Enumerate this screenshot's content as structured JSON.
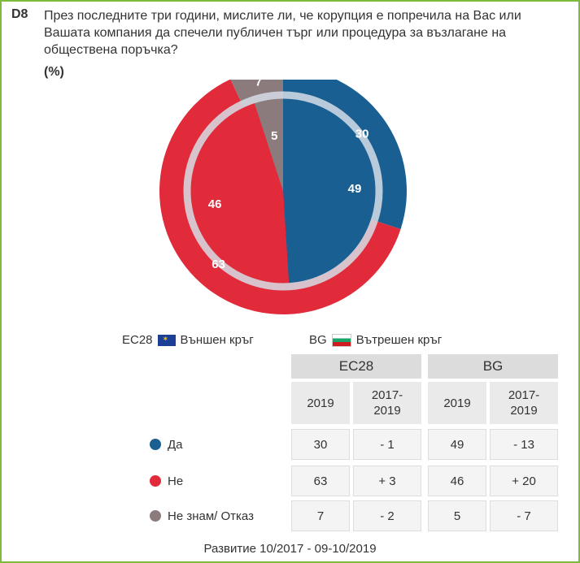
{
  "question": {
    "id": "D8",
    "text": "През последните три години, мислите ли, че корупция е попречила на Вас или Вашата компания да спечели публичен търг или процедура за възлагане на обществена поръчка?",
    "unit": "(%)"
  },
  "chart_data": {
    "type": "pie",
    "outer": {
      "series": "EC28",
      "values": [
        30,
        63,
        7
      ],
      "labels": [
        "30",
        "63",
        "7"
      ]
    },
    "inner": {
      "series": "BG",
      "values": [
        49,
        46,
        5
      ],
      "labels": [
        "49",
        "46",
        "5"
      ]
    },
    "categories": [
      "Да",
      "Не",
      "Не знам/ Отказ"
    ],
    "colors": [
      "#1a5f92",
      "#e12b3b",
      "#8c7b7c"
    ],
    "outer_colors": [
      "#1a5f92",
      "#e12b3b",
      "#8c7b7c"
    ],
    "inner_colors": [
      "#1a5f92",
      "#e12b3b",
      "#8c7b7c"
    ]
  },
  "legend": {
    "eu_code": "EC28",
    "eu_text": "Външен кръг",
    "bg_code": "BG",
    "bg_text": "Вътрешен кръг"
  },
  "table": {
    "group_headers": [
      "EC28",
      "BG"
    ],
    "sub_headers": [
      "2019",
      "2017-\n2019",
      "2019",
      "2017-\n2019"
    ],
    "rows": [
      {
        "label": "Да",
        "color": "#1a5f92",
        "values": [
          "30",
          "- 1",
          "49",
          "- 13"
        ]
      },
      {
        "label": "Не",
        "color": "#e12b3b",
        "values": [
          "63",
          "+ 3",
          "46",
          "+ 20"
        ]
      },
      {
        "label": "Не знам/ Отказ",
        "color": "#8c7b7c",
        "values": [
          "7",
          "- 2",
          "5",
          "- 7"
        ]
      }
    ]
  },
  "footer": "Развитие 10/2017 - 09-10/2019"
}
